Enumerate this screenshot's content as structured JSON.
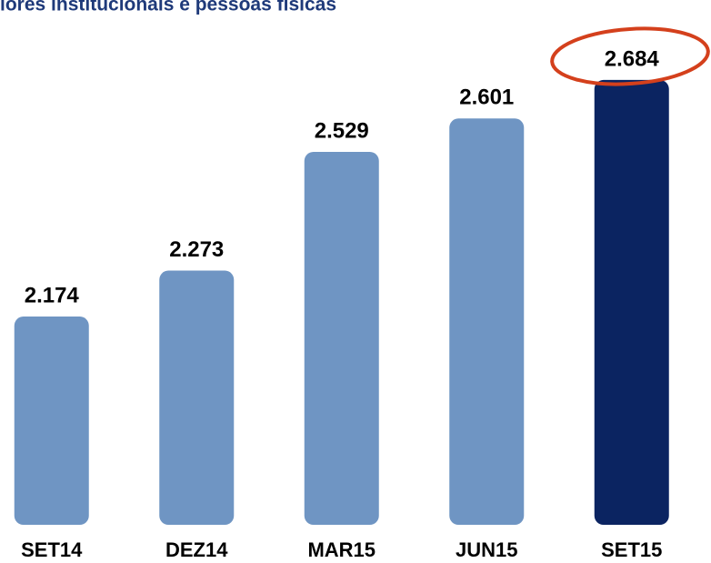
{
  "chart_data": {
    "type": "bar",
    "title": "lores institucionais e pessoas físicas",
    "categories": [
      "SET14",
      "DEZ14",
      "MAR15",
      "JUN15",
      "SET15"
    ],
    "values": [
      2174,
      2273,
      2529,
      2601,
      2684
    ],
    "value_labels": [
      "2.174",
      "2.273",
      "2.529",
      "2.601",
      "2.684"
    ],
    "colors": [
      "#6f95c3",
      "#6f95c3",
      "#6f95c3",
      "#6f95c3",
      "#0b2461"
    ],
    "ylim": [
      1725,
      2778
    ]
  }
}
